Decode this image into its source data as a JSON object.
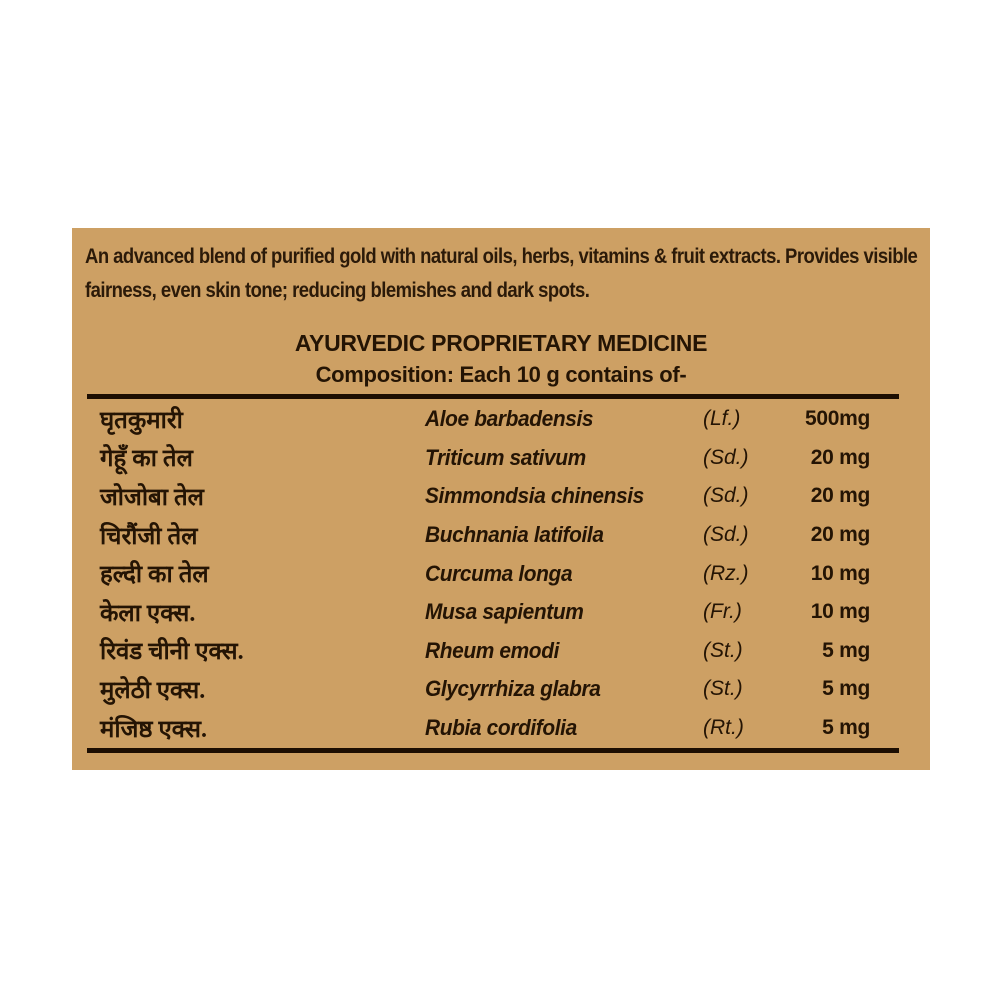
{
  "label": {
    "background_color": "#cda064",
    "text_color": "#241404",
    "description_lines": [
      "An advanced blend of purified gold with natural oils, herbs, vitamins & fruit extracts. Provides visible",
      "fairness, even skin tone; reducing blemishes and dark spots."
    ],
    "heading": "AYURVEDIC PROPRIETARY MEDICINE",
    "subheading": "Composition: Each 10 g contains of-",
    "composition_table": {
      "rows": [
        {
          "hindi": "घृतकुमारी",
          "latin": "Aloe barbadensis",
          "part": "(Lf.)",
          "quantity": "500mg"
        },
        {
          "hindi": "गेहूँ का तेल",
          "latin": "Triticum sativum",
          "part": "(Sd.)",
          "quantity": "20 mg"
        },
        {
          "hindi": "जोजोबा तेल",
          "latin": "Simmondsia chinensis",
          "part": "(Sd.)",
          "quantity": "20 mg"
        },
        {
          "hindi": "चिरौंजी तेल",
          "latin": "Buchnania latifoila",
          "part": "(Sd.)",
          "quantity": "20 mg"
        },
        {
          "hindi": "हल्दी का तेल",
          "latin": "Curcuma longa",
          "part": "(Rz.)",
          "quantity": "10 mg"
        },
        {
          "hindi": "केला एक्स.",
          "latin": "Musa sapientum",
          "part": "(Fr.)",
          "quantity": "10 mg"
        },
        {
          "hindi": "रिवंड चीनी एक्स.",
          "latin": "Rheum emodi",
          "part": "(St.)",
          "quantity": "5 mg"
        },
        {
          "hindi": "मुलेठी एक्स.",
          "latin": "Glycyrrhiza glabra",
          "part": "(St.)",
          "quantity": "5 mg"
        },
        {
          "hindi": "मंजिष्ठ एक्स.",
          "latin": "Rubia cordifolia",
          "part": "(Rt.)",
          "quantity": "5 mg"
        }
      ]
    }
  }
}
